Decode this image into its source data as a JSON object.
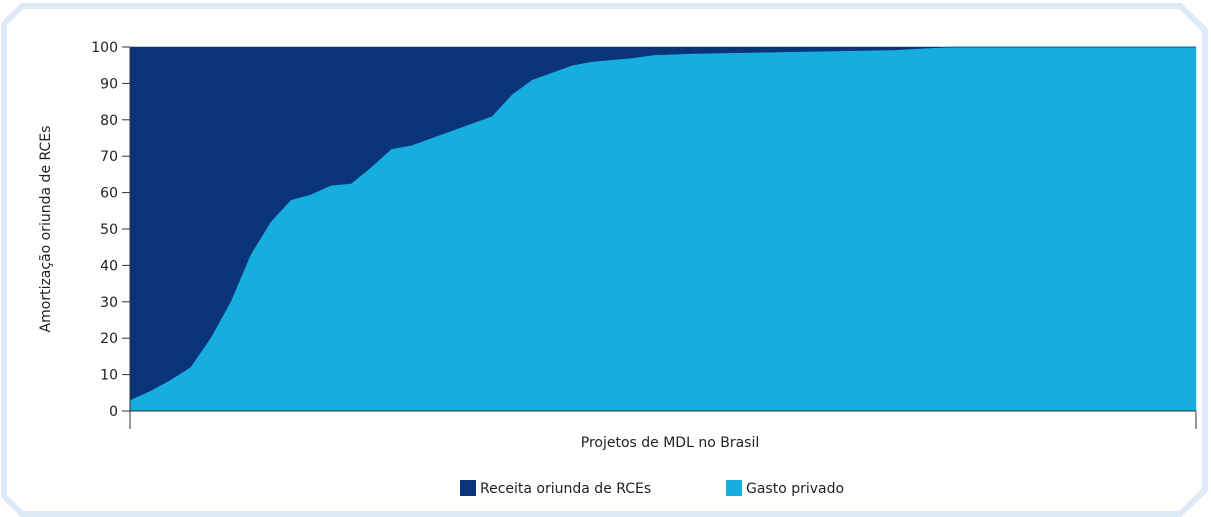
{
  "chart_data": {
    "type": "stacked_area",
    "x_label": "Projetos de MDL no Brasil",
    "y_label": "Amortização oriunda de RCEs",
    "categories": [
      null,
      null,
      null,
      null,
      null,
      null,
      null,
      null,
      null,
      null,
      null,
      null,
      null,
      null,
      null,
      null,
      null,
      null,
      null,
      null,
      null,
      null,
      null,
      null,
      null,
      null,
      null,
      null,
      null,
      null,
      null,
      null,
      null,
      null,
      null,
      null,
      null,
      null,
      null,
      null,
      null,
      null,
      null,
      null,
      null,
      null,
      null,
      null,
      null,
      null,
      null,
      null,
      null,
      null
    ],
    "series": [
      {
        "name": "Gasto privado",
        "color": "#15aedf",
        "values": [
          3,
          5.5,
          8.5,
          12,
          20,
          30,
          43,
          52,
          58,
          59.5,
          62,
          62.5,
          67,
          72,
          73,
          75,
          77,
          79,
          81,
          87,
          91,
          93,
          95,
          96,
          96.5,
          97,
          97.8,
          98,
          98.2,
          98.3,
          98.4,
          98.5,
          98.6,
          98.7,
          98.8,
          98.9,
          99,
          99.1,
          99.2,
          99.5,
          99.8,
          100,
          100,
          100,
          100,
          100,
          100,
          100,
          100,
          100,
          100,
          100,
          100,
          100
        ]
      },
      {
        "name": "Receita oriunda de RCEs",
        "color": "#0a3479",
        "values": [
          97,
          94.5,
          91.5,
          88,
          80,
          70,
          57,
          48,
          42,
          40.5,
          38,
          37.5,
          33,
          28,
          27,
          25,
          23,
          21,
          19,
          13,
          9,
          7,
          5,
          4,
          3.5,
          3,
          2.2,
          2,
          1.8,
          1.7,
          1.6,
          1.5,
          1.4,
          1.3,
          1.2,
          1.1,
          1,
          0.9,
          0.8,
          0.5,
          0.2,
          0,
          0,
          0,
          0,
          0,
          0,
          0,
          0,
          0,
          0,
          0,
          0,
          0
        ]
      }
    ],
    "legend_order": [
      1,
      0
    ],
    "ylim": [
      0,
      100
    ],
    "yticks": [
      0,
      10,
      20,
      30,
      40,
      50,
      60,
      70,
      80,
      90,
      100
    ],
    "grid": false
  }
}
